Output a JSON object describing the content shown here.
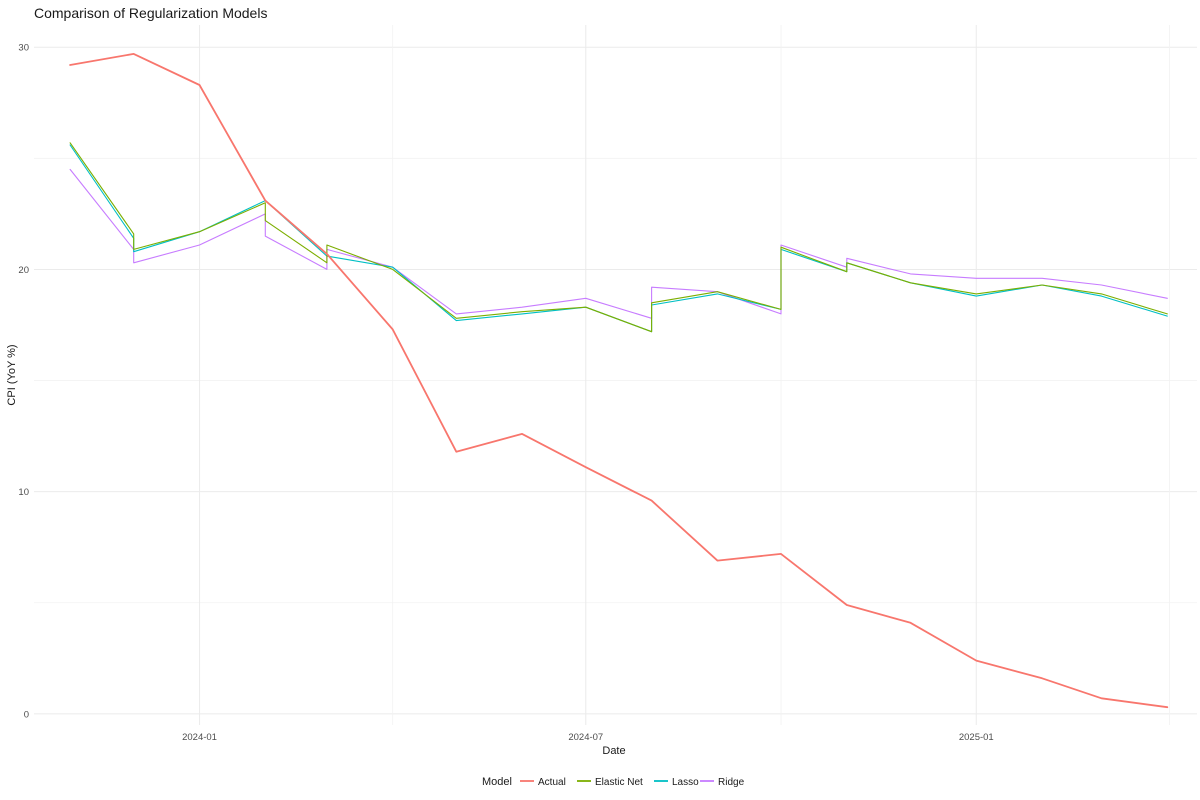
{
  "chart_data": {
    "type": "line",
    "title": "Comparison of Regularization Models",
    "xlabel": "Date",
    "ylabel": "CPI (YoY %)",
    "ylim": [
      -0.5,
      31
    ],
    "xlim": [
      "2023-10-15",
      "2025-04-15"
    ],
    "grid": true,
    "x_ticks": [
      "2024-01",
      "2024-07",
      "2025-01"
    ],
    "x_tick_dates": [
      "2024-01-01",
      "2024-07-01",
      "2025-01-01"
    ],
    "y_ticks": [
      0,
      10,
      20,
      30
    ],
    "legend": {
      "title": "Model",
      "position": "bottom"
    },
    "series": [
      {
        "name": "Actual",
        "color": "#F8766D",
        "points": [
          [
            "2023-11-01",
            29.2
          ],
          [
            "2023-12-01",
            29.7
          ],
          [
            "2024-01-01",
            28.3
          ],
          [
            "2024-02-01",
            23.1
          ],
          [
            "2024-03-01",
            20.7
          ],
          [
            "2024-04-01",
            17.3
          ],
          [
            "2024-05-01",
            11.8
          ],
          [
            "2024-06-01",
            12.6
          ],
          [
            "2024-07-01",
            11.1
          ],
          [
            "2024-08-01",
            9.6
          ],
          [
            "2024-09-01",
            6.9
          ],
          [
            "2024-10-01",
            7.2
          ],
          [
            "2024-11-01",
            4.9
          ],
          [
            "2024-12-01",
            4.1
          ],
          [
            "2025-01-01",
            2.4
          ],
          [
            "2025-02-01",
            1.6
          ],
          [
            "2025-03-01",
            0.7
          ],
          [
            "2025-04-01",
            0.3
          ]
        ]
      },
      {
        "name": "Elastic Net",
        "color": "#7CAE00",
        "points": [
          [
            "2023-11-01",
            25.7
          ],
          [
            "2023-12-01",
            21.6
          ],
          [
            "2023-12-01",
            20.9
          ],
          [
            "2024-01-01",
            21.7
          ],
          [
            "2024-02-01",
            23.0
          ],
          [
            "2024-02-01",
            22.2
          ],
          [
            "2024-03-01",
            20.3
          ],
          [
            "2024-03-01",
            21.1
          ],
          [
            "2024-04-01",
            20.0
          ],
          [
            "2024-05-01",
            17.8
          ],
          [
            "2024-06-01",
            18.1
          ],
          [
            "2024-07-01",
            18.3
          ],
          [
            "2024-08-01",
            17.2
          ],
          [
            "2024-08-01",
            18.5
          ],
          [
            "2024-09-01",
            19.0
          ],
          [
            "2024-10-01",
            18.2
          ],
          [
            "2024-10-01",
            21.0
          ],
          [
            "2024-11-01",
            19.9
          ],
          [
            "2024-11-01",
            20.3
          ],
          [
            "2024-12-01",
            19.4
          ],
          [
            "2025-01-01",
            18.9
          ],
          [
            "2025-02-01",
            19.3
          ],
          [
            "2025-03-01",
            18.9
          ],
          [
            "2025-04-01",
            18.0
          ]
        ]
      },
      {
        "name": "Lasso",
        "color": "#00BFC4",
        "points": [
          [
            "2023-11-01",
            25.6
          ],
          [
            "2023-12-01",
            21.4
          ],
          [
            "2023-12-01",
            20.8
          ],
          [
            "2024-01-01",
            21.7
          ],
          [
            "2024-02-01",
            23.1
          ],
          [
            "2024-03-01",
            20.6
          ],
          [
            "2024-04-01",
            20.1
          ],
          [
            "2024-05-01",
            17.7
          ],
          [
            "2024-06-01",
            18.0
          ],
          [
            "2024-07-01",
            18.3
          ],
          [
            "2024-08-01",
            17.2
          ],
          [
            "2024-08-01",
            18.4
          ],
          [
            "2024-09-01",
            18.9
          ],
          [
            "2024-10-01",
            18.2
          ],
          [
            "2024-10-01",
            20.9
          ],
          [
            "2024-11-01",
            19.9
          ],
          [
            "2024-11-01",
            20.3
          ],
          [
            "2024-12-01",
            19.4
          ],
          [
            "2025-01-01",
            18.8
          ],
          [
            "2025-02-01",
            19.3
          ],
          [
            "2025-03-01",
            18.8
          ],
          [
            "2025-04-01",
            17.9
          ]
        ]
      },
      {
        "name": "Ridge",
        "color": "#C77CFF",
        "points": [
          [
            "2023-11-01",
            24.5
          ],
          [
            "2023-12-01",
            20.9
          ],
          [
            "2023-12-01",
            20.3
          ],
          [
            "2024-01-01",
            21.1
          ],
          [
            "2024-02-01",
            22.5
          ],
          [
            "2024-02-01",
            21.5
          ],
          [
            "2024-03-01",
            20.0
          ],
          [
            "2024-03-01",
            20.9
          ],
          [
            "2024-04-01",
            20.1
          ],
          [
            "2024-05-01",
            18.0
          ],
          [
            "2024-06-01",
            18.3
          ],
          [
            "2024-07-01",
            18.7
          ],
          [
            "2024-08-01",
            17.8
          ],
          [
            "2024-08-01",
            19.2
          ],
          [
            "2024-09-01",
            19.0
          ],
          [
            "2024-10-01",
            18.0
          ],
          [
            "2024-10-01",
            21.1
          ],
          [
            "2024-11-01",
            20.1
          ],
          [
            "2024-11-01",
            20.5
          ],
          [
            "2024-12-01",
            19.8
          ],
          [
            "2025-01-01",
            19.6
          ],
          [
            "2025-02-01",
            19.6
          ],
          [
            "2025-03-01",
            19.3
          ],
          [
            "2025-04-01",
            18.7
          ]
        ]
      }
    ]
  }
}
